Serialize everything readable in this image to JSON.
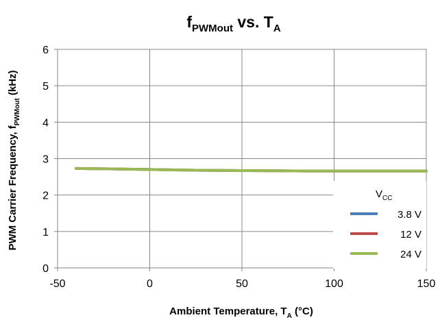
{
  "chart_data": {
    "type": "line",
    "title": {
      "main": "f",
      "main_sub": "PWMout",
      "middle": " vs. T",
      "end_sub": "A"
    },
    "xlabel": {
      "main": "Ambient Temperature, T",
      "sub": "A",
      "end": " (°C)"
    },
    "ylabel": {
      "main": "PWM Carrier Frequency, f",
      "sub": "PWMout",
      "end": " (kHz)"
    },
    "xlim": [
      -50,
      150
    ],
    "ylim": [
      0,
      6
    ],
    "x_ticks": [
      "-50",
      "0",
      "50",
      "100",
      "150"
    ],
    "y_ticks": [
      "0",
      "1",
      "2",
      "3",
      "4",
      "5",
      "6"
    ],
    "grid": true,
    "legend": {
      "title_main": "V",
      "title_sub": "CC",
      "placement": "bottom-right"
    },
    "series": [
      {
        "name": "3.8 V",
        "color": "#4a7ebb",
        "x": [
          -40,
          -25,
          0,
          25,
          50,
          85,
          125,
          150
        ],
        "y": [
          2.73,
          2.72,
          2.7,
          2.68,
          2.67,
          2.66,
          2.66,
          2.66
        ]
      },
      {
        "name": "12 V",
        "color": "#be4b48",
        "x": [
          -40,
          -25,
          0,
          25,
          50,
          85,
          125,
          150
        ],
        "y": [
          2.73,
          2.72,
          2.7,
          2.68,
          2.67,
          2.66,
          2.66,
          2.66
        ]
      },
      {
        "name": "24 V",
        "color": "#98b954",
        "x": [
          -40,
          -25,
          0,
          25,
          50,
          85,
          125,
          150
        ],
        "y": [
          2.73,
          2.72,
          2.7,
          2.68,
          2.67,
          2.66,
          2.66,
          2.66
        ]
      }
    ]
  }
}
